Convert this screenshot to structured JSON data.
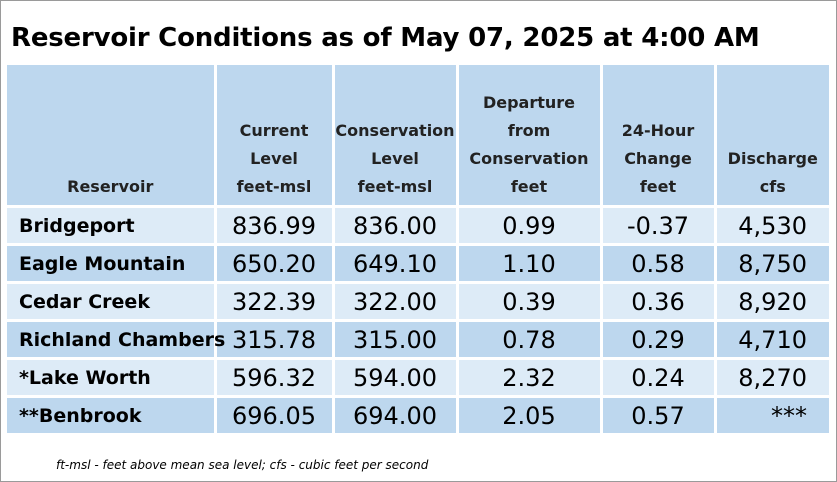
{
  "title": "Reservoir Conditions as of May 07, 2025 at 4:00 AM",
  "columns": [
    {
      "lines": [
        "Reservoir"
      ]
    },
    {
      "lines": [
        "Current",
        "Level",
        "feet-msl"
      ]
    },
    {
      "lines": [
        "Conservation",
        "Level",
        "feet-msl"
      ]
    },
    {
      "lines": [
        "Departure",
        "from",
        "Conservation",
        "feet"
      ]
    },
    {
      "lines": [
        "24-Hour",
        "Change",
        "feet"
      ]
    },
    {
      "lines": [
        "Discharge",
        "cfs"
      ]
    }
  ],
  "rows": [
    {
      "reservoir": "Bridgeport",
      "current_level": "836.99",
      "conservation_level": "836.00",
      "departure": "0.99",
      "change_24h": "-0.37",
      "discharge": "4,530"
    },
    {
      "reservoir": "Eagle Mountain",
      "current_level": "650.20",
      "conservation_level": "649.10",
      "departure": "1.10",
      "change_24h": "0.58",
      "discharge": "8,750"
    },
    {
      "reservoir": "Cedar Creek",
      "current_level": "322.39",
      "conservation_level": "322.00",
      "departure": "0.39",
      "change_24h": "0.36",
      "discharge": "8,920"
    },
    {
      "reservoir": "Richland Chambers",
      "current_level": "315.78",
      "conservation_level": "315.00",
      "departure": "0.78",
      "change_24h": "0.29",
      "discharge": "4,710"
    },
    {
      "reservoir": "*Lake Worth",
      "current_level": "596.32",
      "conservation_level": "594.00",
      "departure": "2.32",
      "change_24h": "0.24",
      "discharge": "8,270"
    },
    {
      "reservoir": "**Benbrook",
      "current_level": "696.05",
      "conservation_level": "694.00",
      "departure": "2.05",
      "change_24h": "0.57",
      "discharge": "***"
    }
  ],
  "footnote": "ft-msl - feet above mean sea level; cfs - cubic feet per second",
  "colors": {
    "header_bg": "#bdd7ee",
    "row_light": "#ddebf7",
    "row_dark": "#bdd7ee"
  }
}
